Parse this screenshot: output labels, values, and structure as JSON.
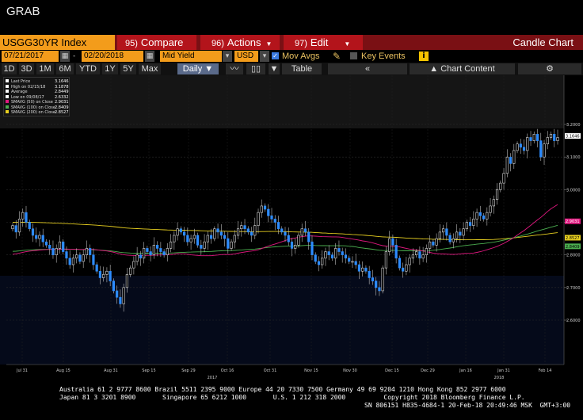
{
  "app": {
    "title": "GRAB"
  },
  "toolbar": {
    "ticker": "USGG30YR Index",
    "compare_num": "95)",
    "compare_label": "Compare",
    "actions_num": "96)",
    "actions_label": "Actions",
    "edit_num": "97)",
    "edit_label": "Edit",
    "chart_type": "Candle Chart"
  },
  "controls": {
    "start_date": "07/21/2017",
    "end_date": "02/20/2018",
    "field": "Mid Yield",
    "currency": "USD",
    "mov_avgs_label": "Mov Avgs",
    "mov_avgs_checked": true,
    "key_events_label": "Key Events",
    "key_events_checked": false
  },
  "timeframes": [
    "1D",
    "3D",
    "1M",
    "6M",
    "YTD",
    "1Y",
    "5Y",
    "Max"
  ],
  "period": "Daily",
  "table_label": "Table",
  "chart_content_label": "Chart Content",
  "legend": [
    {
      "label": "Last Price",
      "value": "3.1646",
      "color": "#ffffff"
    },
    {
      "label": "High on 02/15/18",
      "value": "3.1878",
      "color": "#ffffff"
    },
    {
      "label": "Average",
      "value": "2.8449",
      "color": "#ffffff"
    },
    {
      "label": "Low on 09/08/17",
      "value": "2.6332",
      "color": "#ffffff"
    },
    {
      "label": "SMAVG (50) on Close",
      "value": "2.9031",
      "color": "#e0187f"
    },
    {
      "label": "SMAVG (100) on Close",
      "value": "2.8409",
      "color": "#4caf50"
    },
    {
      "label": "SMAVG (200) on Close",
      "value": "2.8527",
      "color": "#e8d020"
    }
  ],
  "footer": {
    "line1": "Australia 61 2 9777 8600 Brazil 5511 2395 9000 Europe 44 20 7330 7500 Germany 49 69 9204 1210 Hong Kong 852 2977 6000",
    "line2": "Japan 81 3 3201 8900       Singapore 65 6212 1000       U.S. 1 212 318 2000          Copyright 2018 Bloomberg Finance L.P.",
    "line3": "SN 806151 H835-4684-1 20-Feb-18 20:49:46 MSK  GMT+3:00"
  },
  "chart_data": {
    "type": "candlestick",
    "ylim": [
      2.6,
      3.22
    ],
    "y_ticks": [
      "3.2000",
      "3.1000",
      "3.0000",
      "2.9000",
      "2.8000",
      "2.7000",
      "2.6000"
    ],
    "x_tick_labels": [
      "Jul 31",
      "Aug 15",
      "Aug 31",
      "Sep 15",
      "Sep 29",
      "Oct 16",
      "Oct 31",
      "Nov 15",
      "Nov 30",
      "Dec 15",
      "Dec 29",
      "Jan 16",
      "Jan 31",
      "Feb 14"
    ],
    "year_labels": [
      "2017",
      "2018"
    ],
    "closes": [
      2.89,
      2.87,
      2.91,
      2.93,
      2.9,
      2.88,
      2.86,
      2.85,
      2.86,
      2.84,
      2.83,
      2.82,
      2.8,
      2.82,
      2.84,
      2.81,
      2.79,
      2.77,
      2.79,
      2.8,
      2.78,
      2.8,
      2.82,
      2.8,
      2.77,
      2.75,
      2.73,
      2.74,
      2.75,
      2.72,
      2.69,
      2.67,
      2.65,
      2.7,
      2.74,
      2.76,
      2.78,
      2.8,
      2.79,
      2.82,
      2.81,
      2.8,
      2.83,
      2.82,
      2.81,
      2.8,
      2.82,
      2.84,
      2.86,
      2.88,
      2.87,
      2.86,
      2.84,
      2.85,
      2.86,
      2.83,
      2.82,
      2.84,
      2.86,
      2.85,
      2.88,
      2.87,
      2.86,
      2.85,
      2.82,
      2.84,
      2.86,
      2.88,
      2.89,
      2.88,
      2.87,
      2.86,
      2.89,
      2.93,
      2.95,
      2.94,
      2.92,
      2.91,
      2.9,
      2.88,
      2.87,
      2.86,
      2.84,
      2.82,
      2.83,
      2.86,
      2.88,
      2.87,
      2.84,
      2.8,
      2.78,
      2.77,
      2.79,
      2.81,
      2.8,
      2.79,
      2.82,
      2.81,
      2.8,
      2.79,
      2.78,
      2.78,
      2.77,
      2.75,
      2.76,
      2.75,
      2.73,
      2.72,
      2.7,
      2.69,
      2.76,
      2.81,
      2.85,
      2.83,
      2.79,
      2.76,
      2.75,
      2.77,
      2.79,
      2.8,
      2.81,
      2.79,
      2.8,
      2.82,
      2.84,
      2.83,
      2.85,
      2.87,
      2.88,
      2.86,
      2.84,
      2.85,
      2.87,
      2.86,
      2.88,
      2.9,
      2.89,
      2.91,
      2.93,
      2.92,
      2.91,
      2.93,
      2.95,
      2.97,
      3.0,
      3.02,
      3.05,
      3.1,
      3.08,
      3.12,
      3.14,
      3.13,
      3.12,
      3.16,
      3.15,
      3.17,
      3.15,
      3.1,
      3.14,
      3.16,
      3.17,
      3.15,
      3.16
    ],
    "series": [
      {
        "name": "Last Price",
        "color": "#ffffff"
      },
      {
        "name": "SMAVG (50) on Close",
        "color": "#e0187f",
        "last": 2.9031
      },
      {
        "name": "SMAVG (100) on Close",
        "color": "#4caf50",
        "last": 2.8409
      },
      {
        "name": "SMAVG (200) on Close",
        "color": "#e8d020",
        "last": 2.8527
      }
    ],
    "last_price": 3.1646,
    "high": 3.1878,
    "average": 2.8449,
    "low": 2.6332
  }
}
